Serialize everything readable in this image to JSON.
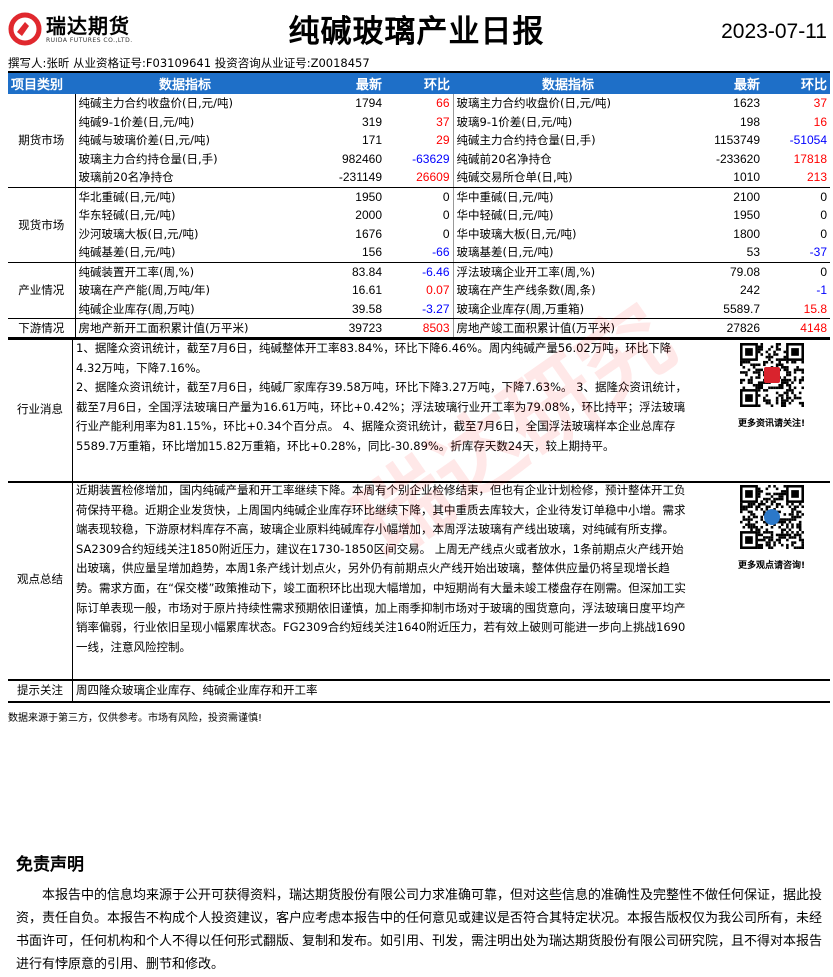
{
  "header": {
    "logo_name": "瑞达期货",
    "logo_en": "RUIDA FUTURES CO.,LTD.",
    "title": "纯碱玻璃产业日报",
    "date": "2023-07-11",
    "author": "撰写人:张昕 从业资格证号:F03109641 投资咨询从业证号:Z0018457"
  },
  "colors": {
    "header_bg": "#1e6fc8",
    "up": "#ff0000",
    "down": "#0000ff"
  },
  "table": {
    "columns": [
      "项目类别",
      "数据指标",
      "最新",
      "环比",
      "数据指标",
      "最新",
      "环比"
    ],
    "groups": [
      {
        "category": "期货市场",
        "rows": [
          [
            "纯碱主力合约收盘价(日,元/吨)",
            "1794",
            "66",
            "玻璃主力合约收盘价(日,元/吨)",
            "1623",
            "37"
          ],
          [
            "纯碱9-1价差(日,元/吨)",
            "319",
            "37",
            "玻璃9-1价差(日,元/吨)",
            "198",
            "16"
          ],
          [
            "纯碱与玻璃价差(日,元/吨)",
            "171",
            "29",
            "纯碱主力合约持仓量(日,手)",
            "1153749",
            "-51054"
          ],
          [
            "玻璃主力合约持仓量(日,手)",
            "982460",
            "-63629",
            "纯碱前20名净持仓",
            "-233620",
            "17818"
          ],
          [
            "玻璃前20名净持仓",
            "-231149",
            "26609",
            "纯碱交易所仓单(日,吨)",
            "1010",
            "213"
          ]
        ]
      },
      {
        "category": "现货市场",
        "rows": [
          [
            "华北重碱(日,元/吨)",
            "1950",
            "0",
            "华中重碱(日,元/吨)",
            "2100",
            "0"
          ],
          [
            "华东轻碱(日,元/吨)",
            "2000",
            "0",
            "华中轻碱(日,元/吨)",
            "1950",
            "0"
          ],
          [
            "沙河玻璃大板(日,元/吨)",
            "1676",
            "0",
            "华中玻璃大板(日,元/吨)",
            "1800",
            "0"
          ],
          [
            "纯碱基差(日,元/吨)",
            "156",
            "-66",
            "玻璃基差(日,元/吨)",
            "53",
            "-37"
          ]
        ]
      },
      {
        "category": "产业情况",
        "rows": [
          [
            "纯碱装置开工率(周,%)",
            "83.84",
            "-6.46",
            "浮法玻璃企业开工率(周,%)",
            "79.08",
            "0"
          ],
          [
            "玻璃在产产能(周,万吨/年)",
            "16.61",
            "0.07",
            "玻璃在产生产线条数(周,条)",
            "242",
            "-1"
          ],
          [
            "纯碱企业库存(周,万吨)",
            "39.58",
            "-3.27",
            "玻璃企业库存(周,万重箱)",
            "5589.7",
            "15.8"
          ]
        ]
      },
      {
        "category": "下游情况",
        "rows": [
          [
            "房地产新开工面积累计值(万平米)",
            "39723",
            "8503",
            "房地产竣工面积累计值(万平米)",
            "27826",
            "4148"
          ]
        ]
      }
    ]
  },
  "news": {
    "label": "行业消息",
    "text": "1、据隆众资讯统计，截至7月6日，纯碱整体开工率83.84%，环比下降6.46%。周内纯碱产量56.02万吨，环比下降4.32万吨，下降7.16%。\n2、据隆众资讯统计，截至7月6日，纯碱厂家库存39.58万吨，环比下降3.27万吨，下降7.63%。 3、据隆众资讯统计，截至7月6日，全国浮法玻璃日产量为16.61万吨，环比+0.42%；浮法玻璃行业开工率为79.08%，环比持平；浮法玻璃行业产能利用率为81.15%，环比+0.34个百分点。 4、据隆众资讯统计，截至7月6日，全国浮法玻璃样本企业总库存5589.7万重箱，环比增加15.82万重箱，环比+0.28%，同比-30.89%。折库存天数24天，较上期持平。",
    "qr_caption": "更多资讯请关注!"
  },
  "view": {
    "label": "观点总结",
    "text": "近期装置检修增加，国内纯碱产量和开工率继续下降。本周有个别企业检修结束，但也有企业计划检修，预计整体开工负荷保持平稳。近期企业发货快，上周国内纯碱企业库存环比继续下降，其中重质去库较大，企业待发订单稳中小增。需求端表现较稳，下游原材料库存不高，玻璃企业原料纯碱库存小幅增加，本周浮法玻璃有产线出玻璃，对纯碱有所支撑。SA2309合约短线关注1850附近压力，建议在1730-1850区间交易。 上周无产线点火或者放水，1条前期点火产线开始出玻璃，供应量呈增加趋势，本周1条产线计划点火，另外仍有前期点火产线开始出玻璃，整体供应量仍将呈现增长趋势。需求方面，在“保交楼”政策推动下，竣工面积环比出现大幅增加，中短期尚有大量未竣工楼盘存在刚需。但深加工实际订单表现一般，市场对于原片持续性需求预期依旧谨慎，加上雨季抑制市场对于玻璃的囤货意向，浮法玻璃日度平均产销率偏弱，行业依旧呈现小幅累库状态。FG2309合约短线关注1640附近压力，若有效上破则可能进一步向上挑战1690一线，注意风险控制。",
    "qr_caption": "更多观点请咨询!"
  },
  "tips": {
    "label": "提示关注",
    "text": "周四隆众玻璃企业库存、纯碱企业库存和开工率"
  },
  "note": "数据来源于第三方，仅供参考。市场有风险，投资需谨慎!",
  "disclaimer": {
    "title": "免责声明",
    "text": "本报告中的信息均来源于公开可获得资料，瑞达期货股份有限公司力求准确可靠，但对这些信息的准确性及完整性不做任何保证，据此投资，责任自负。本报告不构成个人投资建议，客户应考虑本报告中的任何意见或建议是否符合其特定状况。本报告版权仅为我公司所有，未经书面许可，任何机构和个人不得以任何形式翻版、复制和发布。如引用、刊发，需注明出处为瑞达期货股份有限公司研究院，且不得对本报告进行有悖原意的引用、删节和修改。"
  },
  "watermark": "瑞达研究"
}
